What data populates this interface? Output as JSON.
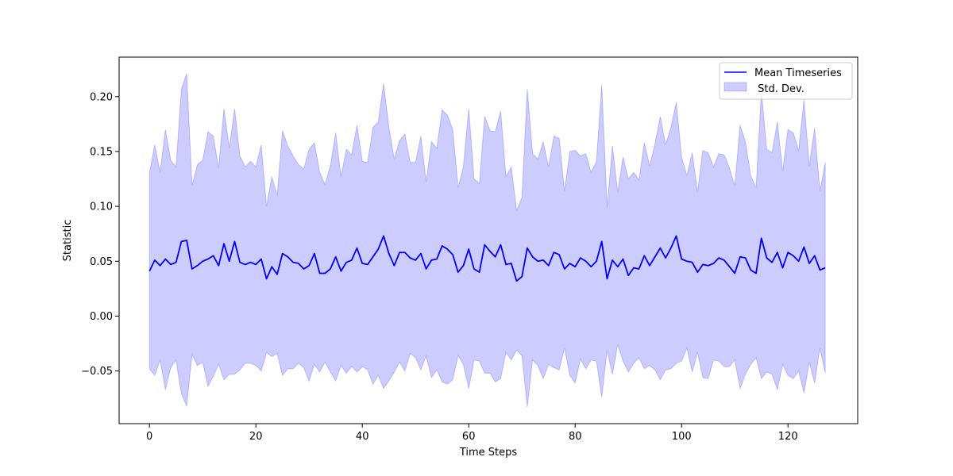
{
  "chart_data": {
    "type": "line",
    "title": "",
    "xlabel": "Time Steps",
    "ylabel": "Statistic",
    "xlim": [
      -5.7,
      133.1
    ],
    "ylim": [
      -0.098,
      0.236
    ],
    "xticks": [
      0,
      20,
      40,
      60,
      80,
      100,
      120
    ],
    "yticks": [
      -0.05,
      0.0,
      0.05,
      0.1,
      0.15,
      0.2
    ],
    "ytick_labels": [
      "−0.05",
      "0.00",
      "0.05",
      "0.10",
      "0.15",
      "0.20"
    ],
    "grid": false,
    "legend_position": "top-right",
    "x": [
      0,
      1,
      2,
      3,
      4,
      5,
      6,
      7,
      8,
      9,
      10,
      11,
      12,
      13,
      14,
      15,
      16,
      17,
      18,
      19,
      20,
      21,
      22,
      23,
      24,
      25,
      26,
      27,
      28,
      29,
      30,
      31,
      32,
      33,
      34,
      35,
      36,
      37,
      38,
      39,
      40,
      41,
      42,
      43,
      44,
      45,
      46,
      47,
      48,
      49,
      50,
      51,
      52,
      53,
      54,
      55,
      56,
      57,
      58,
      59,
      60,
      61,
      62,
      63,
      64,
      65,
      66,
      67,
      68,
      69,
      70,
      71,
      72,
      73,
      74,
      75,
      76,
      77,
      78,
      79,
      80,
      81,
      82,
      83,
      84,
      85,
      86,
      87,
      88,
      89,
      90,
      91,
      92,
      93,
      94,
      95,
      96,
      97,
      98,
      99,
      100,
      101,
      102,
      103,
      104,
      105,
      106,
      107,
      108,
      109,
      110,
      111,
      112,
      113,
      114,
      115,
      116,
      117,
      118,
      119,
      120,
      121,
      122,
      123,
      124,
      125,
      126,
      127
    ],
    "series": [
      {
        "name": "Mean Timeseries",
        "color": "#0000ff",
        "values": [
          0.041,
          0.051,
          0.046,
          0.052,
          0.047,
          0.049,
          0.068,
          0.069,
          0.043,
          0.046,
          0.05,
          0.052,
          0.055,
          0.046,
          0.066,
          0.05,
          0.068,
          0.049,
          0.047,
          0.049,
          0.047,
          0.052,
          0.034,
          0.045,
          0.038,
          0.057,
          0.054,
          0.049,
          0.048,
          0.043,
          0.046,
          0.057,
          0.039,
          0.039,
          0.043,
          0.054,
          0.041,
          0.049,
          0.051,
          0.062,
          0.048,
          0.047,
          0.054,
          0.061,
          0.073,
          0.057,
          0.046,
          0.058,
          0.058,
          0.053,
          0.051,
          0.057,
          0.043,
          0.051,
          0.052,
          0.064,
          0.061,
          0.056,
          0.04,
          0.046,
          0.061,
          0.043,
          0.04,
          0.065,
          0.059,
          0.054,
          0.065,
          0.047,
          0.048,
          0.032,
          0.036,
          0.062,
          0.054,
          0.05,
          0.051,
          0.046,
          0.058,
          0.056,
          0.043,
          0.048,
          0.045,
          0.053,
          0.05,
          0.045,
          0.05,
          0.068,
          0.034,
          0.051,
          0.045,
          0.052,
          0.037,
          0.044,
          0.043,
          0.055,
          0.046,
          0.054,
          0.062,
          0.053,
          0.062,
          0.073,
          0.052,
          0.05,
          0.049,
          0.04,
          0.047,
          0.046,
          0.048,
          0.053,
          0.051,
          0.045,
          0.039,
          0.054,
          0.053,
          0.042,
          0.039,
          0.071,
          0.053,
          0.049,
          0.058,
          0.044,
          0.058,
          0.055,
          0.05,
          0.063,
          0.048,
          0.055,
          0.042,
          0.044
        ]
      },
      {
        "name": " Std. Dev.",
        "color": "#0000ff",
        "fill_alpha": 0.2,
        "upper": [
          0.131,
          0.156,
          0.131,
          0.17,
          0.142,
          0.136,
          0.207,
          0.221,
          0.119,
          0.138,
          0.142,
          0.168,
          0.164,
          0.135,
          0.189,
          0.153,
          0.189,
          0.146,
          0.136,
          0.141,
          0.136,
          0.156,
          0.1,
          0.127,
          0.11,
          0.169,
          0.155,
          0.146,
          0.138,
          0.134,
          0.152,
          0.158,
          0.131,
          0.12,
          0.137,
          0.167,
          0.127,
          0.152,
          0.147,
          0.174,
          0.141,
          0.14,
          0.172,
          0.177,
          0.212,
          0.172,
          0.143,
          0.16,
          0.166,
          0.14,
          0.14,
          0.164,
          0.122,
          0.159,
          0.153,
          0.188,
          0.183,
          0.17,
          0.117,
          0.136,
          0.189,
          0.125,
          0.121,
          0.182,
          0.169,
          0.168,
          0.187,
          0.127,
          0.136,
          0.096,
          0.108,
          0.207,
          0.148,
          0.143,
          0.159,
          0.136,
          0.164,
          0.162,
          0.114,
          0.15,
          0.151,
          0.146,
          0.148,
          0.131,
          0.141,
          0.211,
          0.099,
          0.155,
          0.113,
          0.145,
          0.125,
          0.131,
          0.124,
          0.158,
          0.137,
          0.157,
          0.182,
          0.156,
          0.172,
          0.195,
          0.145,
          0.128,
          0.149,
          0.113,
          0.151,
          0.149,
          0.136,
          0.148,
          0.147,
          0.135,
          0.119,
          0.174,
          0.159,
          0.128,
          0.117,
          0.205,
          0.152,
          0.149,
          0.177,
          0.132,
          0.17,
          0.167,
          0.151,
          0.197,
          0.137,
          0.171,
          0.114,
          0.14
        ],
        "lower": [
          -0.048,
          -0.054,
          -0.04,
          -0.067,
          -0.047,
          -0.04,
          -0.071,
          -0.082,
          -0.035,
          -0.045,
          -0.042,
          -0.064,
          -0.055,
          -0.044,
          -0.058,
          -0.053,
          -0.053,
          -0.049,
          -0.043,
          -0.043,
          -0.045,
          -0.05,
          -0.033,
          -0.037,
          -0.034,
          -0.054,
          -0.048,
          -0.048,
          -0.043,
          -0.047,
          -0.059,
          -0.044,
          -0.051,
          -0.042,
          -0.051,
          -0.059,
          -0.045,
          -0.052,
          -0.046,
          -0.051,
          -0.046,
          -0.049,
          -0.062,
          -0.054,
          -0.066,
          -0.059,
          -0.051,
          -0.042,
          -0.05,
          -0.034,
          -0.038,
          -0.049,
          -0.036,
          -0.056,
          -0.049,
          -0.06,
          -0.062,
          -0.058,
          -0.036,
          -0.044,
          -0.066,
          -0.04,
          -0.041,
          -0.052,
          -0.052,
          -0.06,
          -0.057,
          -0.033,
          -0.04,
          -0.031,
          -0.036,
          -0.083,
          -0.04,
          -0.045,
          -0.057,
          -0.044,
          -0.047,
          -0.049,
          -0.029,
          -0.054,
          -0.061,
          -0.039,
          -0.048,
          -0.04,
          -0.041,
          -0.074,
          -0.031,
          -0.053,
          -0.026,
          -0.041,
          -0.051,
          -0.043,
          -0.038,
          -0.048,
          -0.045,
          -0.049,
          -0.058,
          -0.049,
          -0.048,
          -0.043,
          -0.041,
          -0.029,
          -0.051,
          -0.033,
          -0.056,
          -0.057,
          -0.04,
          -0.041,
          -0.046,
          -0.046,
          -0.04,
          -0.066,
          -0.053,
          -0.044,
          -0.038,
          -0.057,
          -0.051,
          -0.053,
          -0.067,
          -0.044,
          -0.054,
          -0.057,
          -0.05,
          -0.07,
          -0.042,
          -0.061,
          -0.029,
          -0.052
        ]
      }
    ]
  }
}
